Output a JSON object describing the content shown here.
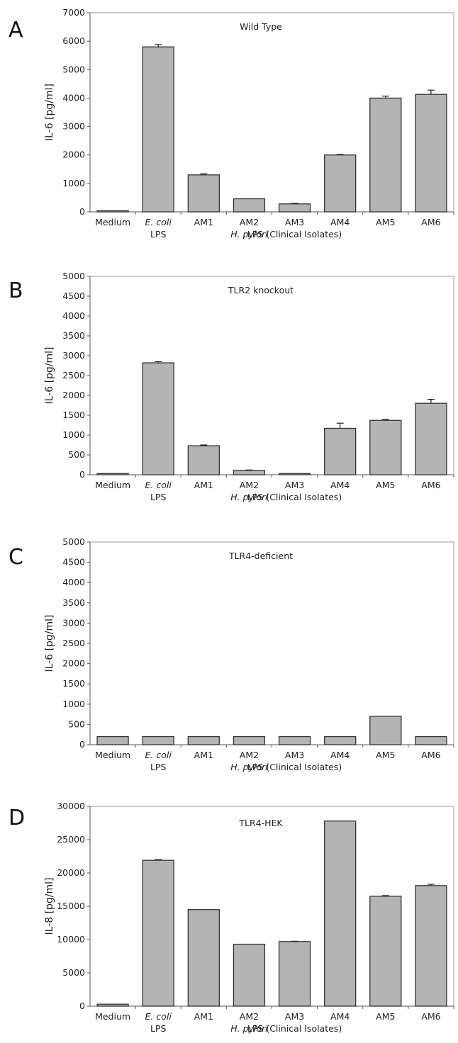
{
  "figure": {
    "bar_color": "#b4b4b4",
    "edge_color": "#333333",
    "panels": [
      "A",
      "B",
      "C",
      "D"
    ]
  },
  "chart_data": [
    {
      "type": "bar",
      "panel": "A",
      "title": "Wild Type",
      "ylabel": "IL-6 [pg/ml]",
      "ylim": [
        0,
        7000
      ],
      "yticks": [
        0,
        1000,
        2000,
        3000,
        4000,
        5000,
        6000,
        7000
      ],
      "categories": [
        "Medium",
        "E. coli",
        "AM1",
        "AM2",
        "AM3",
        "AM4",
        "AM5",
        "AM6"
      ],
      "sublabels": [
        "",
        "LPS",
        "",
        "H. pylori",
        "LPS (Clinical Isolates)",
        "",
        "",
        ""
      ],
      "values": [
        40,
        5800,
        1300,
        460,
        280,
        2000,
        4000,
        4130
      ],
      "errors": [
        0,
        80,
        40,
        0,
        20,
        20,
        70,
        150
      ]
    },
    {
      "type": "bar",
      "panel": "B",
      "title": "TLR2 knockout",
      "ylabel": "IL-6 [pg/ml]",
      "ylim": [
        0,
        5000
      ],
      "yticks": [
        0,
        500,
        1000,
        1500,
        2000,
        2500,
        3000,
        3500,
        4000,
        4500,
        5000
      ],
      "categories": [
        "Medium",
        "E. coli",
        "AM1",
        "AM2",
        "AM3",
        "AM4",
        "AM5",
        "AM6"
      ],
      "sublabels": [
        "",
        "LPS",
        "",
        "H. pylori",
        "LPS (Clinical Isolates)",
        "",
        "",
        ""
      ],
      "values": [
        30,
        2820,
        730,
        110,
        30,
        1170,
        1370,
        1800
      ],
      "errors": [
        0,
        30,
        20,
        10,
        0,
        130,
        30,
        100
      ]
    },
    {
      "type": "bar",
      "panel": "C",
      "title": "TLR4-deficient",
      "ylabel": "IL-6 [pg/ml]",
      "ylim": [
        0,
        5000
      ],
      "yticks": [
        0,
        500,
        1000,
        1500,
        2000,
        2500,
        3000,
        3500,
        4000,
        4500,
        5000
      ],
      "categories": [
        "Medium",
        "E. coli",
        "AM1",
        "AM2",
        "AM3",
        "AM4",
        "AM5",
        "AM6"
      ],
      "sublabels": [
        "",
        "LPS",
        "",
        "H. pylori",
        "LPS (Clinical Isolates)",
        "",
        "",
        ""
      ],
      "values": [
        200,
        200,
        200,
        200,
        200,
        200,
        700,
        200
      ],
      "errors": [
        0,
        0,
        0,
        0,
        0,
        0,
        0,
        0
      ]
    },
    {
      "type": "bar",
      "panel": "D",
      "title": "TLR4-HEK",
      "ylabel": "IL-8 [pg/ml]",
      "ylim": [
        0,
        30000
      ],
      "yticks": [
        0,
        5000,
        10000,
        15000,
        20000,
        25000,
        30000
      ],
      "categories": [
        "Medium",
        "E. coli",
        "AM1",
        "AM2",
        "AM3",
        "AM4",
        "AM5",
        "AM6"
      ],
      "sublabels": [
        "",
        "LPS",
        "",
        "H. pylori",
        "LPS (Clinical Isolates)",
        "",
        "",
        ""
      ],
      "values": [
        300,
        21900,
        14500,
        9300,
        9700,
        27800,
        16500,
        18100
      ],
      "errors": [
        0,
        100,
        0,
        0,
        50,
        0,
        100,
        200
      ]
    }
  ]
}
